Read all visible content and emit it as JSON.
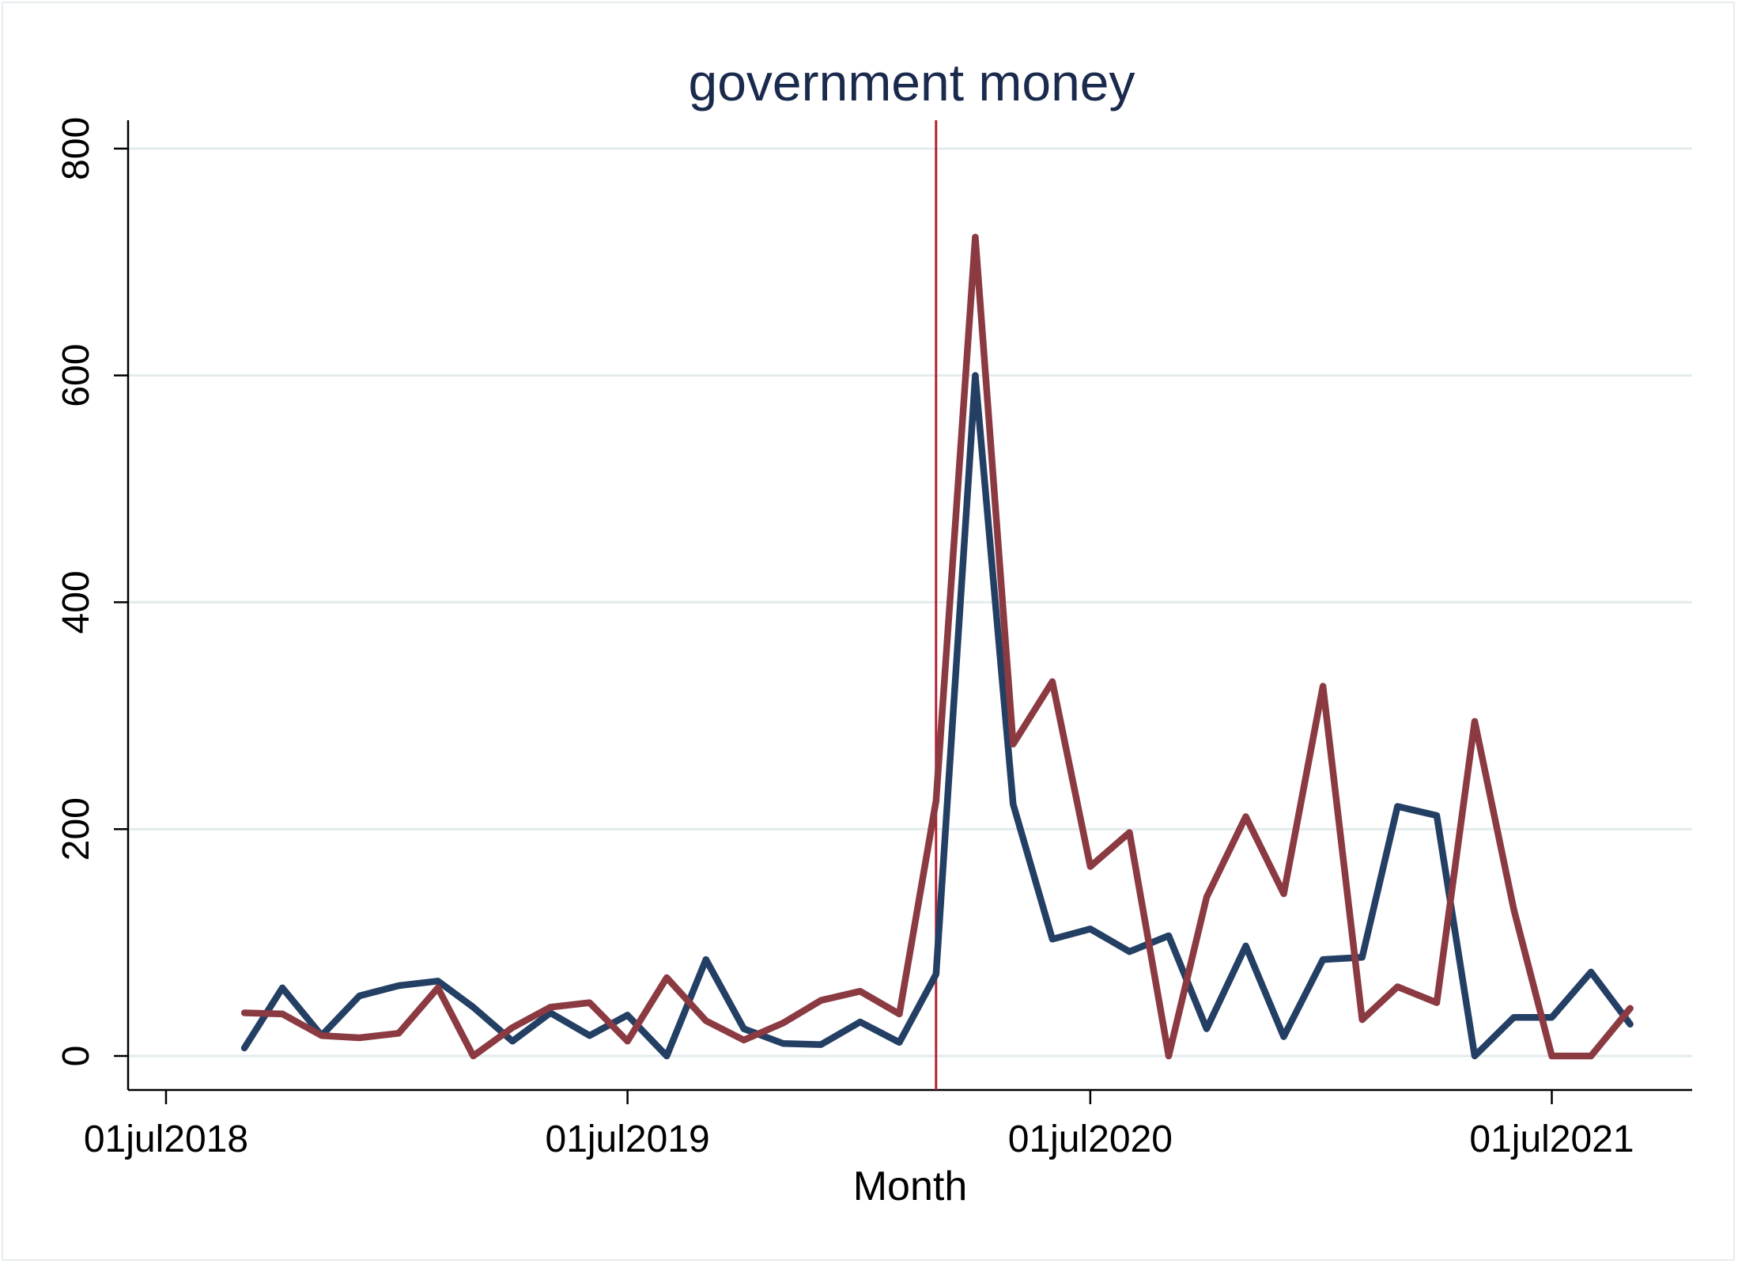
{
  "chart_data": {
    "type": "line",
    "title": "government money",
    "xlabel": "Month",
    "ylabel": "",
    "ylim": [
      -30,
      825
    ],
    "xlim": [
      "2018-06-01",
      "2021-10-20"
    ],
    "grid": true,
    "legend": "none",
    "x_ticks": [
      {
        "date": "2018-07-01",
        "label": "01jul2018"
      },
      {
        "date": "2019-07-01",
        "label": "01jul2019"
      },
      {
        "date": "2020-07-01",
        "label": "01jul2020"
      },
      {
        "date": "2021-07-01",
        "label": "01jul2021"
      }
    ],
    "y_ticks": [
      0,
      200,
      400,
      600,
      800
    ],
    "reference_line": {
      "date": "2020-03-01",
      "color": "#b22233"
    },
    "x": [
      "2018-09-01",
      "2018-10-01",
      "2018-11-01",
      "2018-12-01",
      "2019-01-01",
      "2019-02-01",
      "2019-03-01",
      "2019-04-01",
      "2019-05-01",
      "2019-06-01",
      "2019-07-01",
      "2019-08-01",
      "2019-09-01",
      "2019-10-01",
      "2019-11-01",
      "2019-12-01",
      "2020-01-01",
      "2020-02-01",
      "2020-03-01",
      "2020-04-01",
      "2020-05-01",
      "2020-06-01",
      "2020-07-01",
      "2020-08-01",
      "2020-09-01",
      "2020-10-01",
      "2020-11-01",
      "2020-12-01",
      "2021-01-01",
      "2021-02-01",
      "2021-03-01",
      "2021-04-01",
      "2021-05-01",
      "2021-06-01",
      "2021-07-01",
      "2021-08-01",
      "2021-09-01"
    ],
    "series": [
      {
        "color": "#243f64",
        "values": [
          7,
          60,
          18,
          53,
          62,
          66,
          43,
          13,
          38,
          18,
          36,
          0,
          85,
          24,
          11,
          10,
          30,
          12,
          72,
          600,
          222,
          103,
          112,
          92,
          106,
          24,
          97,
          17,
          85,
          87,
          220,
          212,
          0,
          34,
          34,
          74,
          28
        ]
      },
      {
        "color": "#8b3a42",
        "values": [
          38,
          37,
          18,
          16,
          20,
          60,
          0,
          25,
          43,
          47,
          13,
          69,
          31,
          14,
          29,
          49,
          57,
          37,
          225,
          722,
          275,
          330,
          167,
          197,
          0,
          140,
          211,
          143,
          326,
          32,
          61,
          47,
          295,
          129,
          0,
          0,
          42
        ]
      }
    ]
  }
}
